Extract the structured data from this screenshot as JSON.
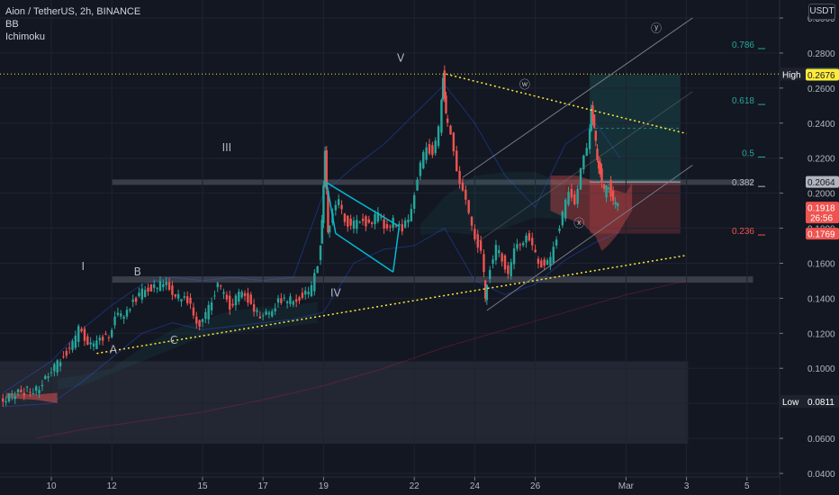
{
  "header": {
    "symbol_line": "Aion / TetherUS, 2h, BINANCE",
    "indicator_bb": "BB",
    "indicator_ichimoku": "Ichimoku",
    "currency_button": "USDT"
  },
  "price_axis": {
    "ticks": [
      "0.3000",
      "0.2800",
      "0.2600",
      "0.2400",
      "0.2200",
      "0.2000",
      "0.1800",
      "0.1600",
      "0.1400",
      "0.1200",
      "0.1000",
      "0.0800",
      "0.0600",
      "0.0400"
    ],
    "tags": [
      {
        "label": "0.2684",
        "color": "#26a69a",
        "text_color": "#ffffff",
        "price": 0.2684
      },
      {
        "label": "High",
        "value": "0.2680",
        "color": "#1e222d",
        "text_color": "#ffffff",
        "price": 0.268
      },
      {
        "label": "0.2676",
        "color": "#ffeb3b",
        "text_color": "#131722",
        "price": 0.2676
      },
      {
        "label": "0.2064",
        "color": "#b2b5be",
        "text_color": "#131722",
        "price": 0.2064
      },
      {
        "label": "0.1918",
        "sub": "26:56",
        "color": "#ef5350",
        "text_color": "#ffffff",
        "price": 0.1918
      },
      {
        "label": "0.1769",
        "color": "#ef5350",
        "text_color": "#ffffff",
        "price": 0.1769
      },
      {
        "label": "Low",
        "value": "0.0811",
        "color": "#1e222d",
        "text_color": "#ffffff",
        "price": 0.0811
      }
    ]
  },
  "time_axis": {
    "ticks": [
      "10",
      "12",
      "15",
      "17",
      "19",
      "22",
      "24",
      "26",
      "Mar",
      "3",
      "5"
    ]
  },
  "fib_levels": [
    {
      "label": "0.786",
      "color": "#26a69a",
      "price": 0.2851
    },
    {
      "label": "0.618",
      "color": "#26a69a",
      "price": 0.2532
    },
    {
      "label": "0.5",
      "color": "#26a69a",
      "price": 0.2232
    },
    {
      "label": "0.382",
      "color": "#b2b5be",
      "price": 0.2064
    },
    {
      "label": "0.236",
      "color": "#ef5350",
      "price": 0.1787
    }
  ],
  "wave_labels": [
    {
      "text": "I",
      "x": 2.05,
      "price": 0.156
    },
    {
      "text": "B",
      "x": 3.85,
      "price": 0.153
    },
    {
      "text": "A",
      "x": 3.05,
      "price": 0.1085
    },
    {
      "text": "C",
      "x": 5.05,
      "price": 0.114
    },
    {
      "text": "III",
      "x": 6.8,
      "price": 0.224
    },
    {
      "text": "IV",
      "x": 10.4,
      "price": 0.141
    },
    {
      "text": "V",
      "x": 12.55,
      "price": 0.275
    },
    {
      "text": "ⓦ",
      "x": 16.65,
      "price": 0.26
    },
    {
      "text": "ⓧ",
      "x": 18.45,
      "price": 0.1808
    },
    {
      "text": "ⓨ",
      "x": 21.0,
      "price": 0.292
    }
  ],
  "chart_data": {
    "type": "candlestick",
    "title": "Aion / TetherUS, 2h, BINANCE",
    "ylim": [
      0.04,
      0.31
    ],
    "x_ticks": [
      {
        "label": "10",
        "x": 1.0
      },
      {
        "label": "12",
        "x": 3.0
      },
      {
        "label": "15",
        "x": 6.0
      },
      {
        "label": "17",
        "x": 8.0
      },
      {
        "label": "19",
        "x": 10.0
      },
      {
        "label": "22",
        "x": 13.0
      },
      {
        "label": "24",
        "x": 15.0
      },
      {
        "label": "26",
        "x": 17.0
      },
      {
        "label": "Mar",
        "x": 20.0
      },
      {
        "label": "3",
        "x": 22.0
      },
      {
        "label": "5",
        "x": 24.0
      }
    ],
    "last_price": 0.1918,
    "countdown": "26:56",
    "high": 0.268,
    "low": 0.0811,
    "ohlc_path": [
      [
        -0.6,
        0.082
      ],
      [
        -0.2,
        0.084
      ],
      [
        0.2,
        0.087
      ],
      [
        0.6,
        0.088
      ],
      [
        1.0,
        0.095
      ],
      [
        1.2,
        0.1
      ],
      [
        1.5,
        0.108
      ],
      [
        1.8,
        0.113
      ],
      [
        2.0,
        0.122
      ],
      [
        2.2,
        0.118
      ],
      [
        2.5,
        0.112
      ],
      [
        2.8,
        0.118
      ],
      [
        3.0,
        0.12
      ],
      [
        3.2,
        0.128
      ],
      [
        3.5,
        0.132
      ],
      [
        3.8,
        0.138
      ],
      [
        4.0,
        0.141
      ],
      [
        4.2,
        0.145
      ],
      [
        4.5,
        0.146
      ],
      [
        4.8,
        0.148
      ],
      [
        5.0,
        0.146
      ],
      [
        5.3,
        0.14
      ],
      [
        5.6,
        0.138
      ],
      [
        5.8,
        0.132
      ],
      [
        6.0,
        0.124
      ],
      [
        6.2,
        0.13
      ],
      [
        6.4,
        0.14
      ],
      [
        6.6,
        0.148
      ],
      [
        6.8,
        0.142
      ],
      [
        7.0,
        0.136
      ],
      [
        7.3,
        0.142
      ],
      [
        7.6,
        0.14
      ],
      [
        7.9,
        0.132
      ],
      [
        8.1,
        0.128
      ],
      [
        8.3,
        0.132
      ],
      [
        8.6,
        0.138
      ],
      [
        8.9,
        0.138
      ],
      [
        9.2,
        0.14
      ],
      [
        9.5,
        0.142
      ],
      [
        9.7,
        0.145
      ],
      [
        9.9,
        0.16
      ],
      [
        10.0,
        0.185
      ],
      [
        10.1,
        0.222
      ],
      [
        10.2,
        0.18
      ],
      [
        10.4,
        0.188
      ],
      [
        10.6,
        0.195
      ],
      [
        10.8,
        0.186
      ],
      [
        11.0,
        0.18
      ],
      [
        11.3,
        0.186
      ],
      [
        11.6,
        0.182
      ],
      [
        11.9,
        0.188
      ],
      [
        12.1,
        0.18
      ],
      [
        12.4,
        0.184
      ],
      [
        12.7,
        0.178
      ],
      [
        12.9,
        0.186
      ],
      [
        13.1,
        0.2
      ],
      [
        13.3,
        0.215
      ],
      [
        13.5,
        0.228
      ],
      [
        13.7,
        0.222
      ],
      [
        13.9,
        0.236
      ],
      [
        14.0,
        0.268
      ],
      [
        14.1,
        0.245
      ],
      [
        14.3,
        0.232
      ],
      [
        14.5,
        0.215
      ],
      [
        14.7,
        0.2
      ],
      [
        14.9,
        0.188
      ],
      [
        15.1,
        0.176
      ],
      [
        15.3,
        0.165
      ],
      [
        15.4,
        0.14
      ],
      [
        15.6,
        0.158
      ],
      [
        15.8,
        0.168
      ],
      [
        16.0,
        0.162
      ],
      [
        16.2,
        0.155
      ],
      [
        16.4,
        0.166
      ],
      [
        16.6,
        0.172
      ],
      [
        16.8,
        0.176
      ],
      [
        17.0,
        0.168
      ],
      [
        17.2,
        0.162
      ],
      [
        17.4,
        0.158
      ],
      [
        17.6,
        0.162
      ],
      [
        17.8,
        0.176
      ],
      [
        18.0,
        0.188
      ],
      [
        18.2,
        0.2
      ],
      [
        18.4,
        0.196
      ],
      [
        18.6,
        0.212
      ],
      [
        18.8,
        0.226
      ],
      [
        18.9,
        0.25
      ],
      [
        19.0,
        0.235
      ],
      [
        19.1,
        0.22
      ],
      [
        19.2,
        0.212
      ],
      [
        19.35,
        0.2
      ],
      [
        19.5,
        0.205
      ],
      [
        19.65,
        0.196
      ],
      [
        19.8,
        0.192
      ]
    ],
    "series": [
      {
        "name": "BB",
        "color": "#2962ff"
      },
      {
        "name": "Ichimoku",
        "color": "#26a69a"
      }
    ]
  },
  "colors": {
    "background": "#131722",
    "bull": "#26a69a",
    "bear": "#ef5350",
    "yellow_dotted": "#ffeb3b",
    "channel": "#787b86",
    "wedge": "#00bcd4"
  }
}
